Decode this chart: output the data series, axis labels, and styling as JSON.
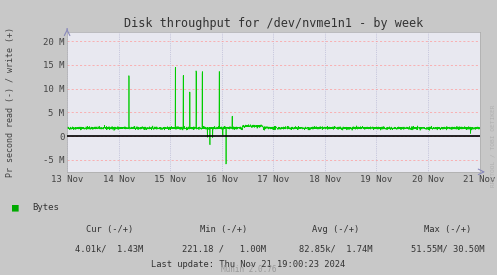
{
  "title": "Disk throughput for /dev/nvme1n1 - by week",
  "ylabel": "Pr second read (-) / write (+)",
  "ylim": [
    -7500000,
    22000000
  ],
  "yticks": [
    -5000000,
    0,
    5000000,
    10000000,
    15000000,
    20000000
  ],
  "ytick_labels": [
    "-5 M",
    "0",
    "5 M",
    "10 M",
    "15 M",
    "20 M"
  ],
  "fig_bg_color": "#c8c8c8",
  "plot_bg_color": "#e8e8f0",
  "grid_color": "#ff9999",
  "dot_grid_color": "#aaaacc",
  "line_color": "#00cc00",
  "zero_line_color": "#000000",
  "title_color": "#333333",
  "legend_label": "Bytes",
  "legend_color": "#00aa00",
  "footer_cur": "Cur (-/+)",
  "footer_cur_val": "4.01k/  1.43M",
  "footer_min": "Min (-/+)",
  "footer_min_val": "221.18 /   1.00M",
  "footer_avg": "Avg (-/+)",
  "footer_avg_val": "82.85k/  1.74M",
  "footer_max": "Max (-/+)",
  "footer_max_val": "51.55M/ 30.50M",
  "footer_update": "Last update: Thu Nov 21 19:00:23 2024",
  "munin_version": "Munin 2.0.76",
  "watermark": "RRDTOOL / TOBI OETIKER",
  "xtick_positions": [
    0,
    1,
    2,
    3,
    4,
    5,
    6,
    7,
    8
  ],
  "xtick_labels": [
    "13 Nov",
    "14 Nov",
    "15 Nov",
    "16 Nov",
    "17 Nov",
    "18 Nov",
    "19 Nov",
    "20 Nov",
    "21 Nov"
  ]
}
